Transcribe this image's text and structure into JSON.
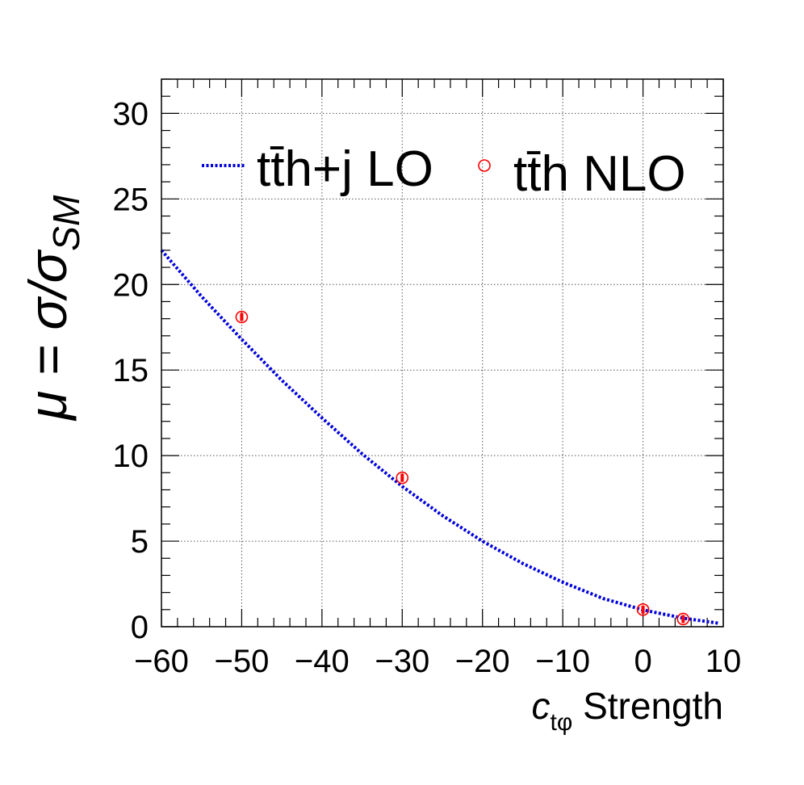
{
  "chart_data": {
    "type": "line",
    "xlabel": {
      "main": "c",
      "sub": "tφ",
      "suffix": " Strength"
    },
    "ylabel": {
      "lead": "μ = σ/σ",
      "sub": "SM"
    },
    "xlim": [
      -60,
      10
    ],
    "ylim": [
      0,
      32
    ],
    "x_ticks": [
      -60,
      -50,
      -40,
      -30,
      -20,
      -10,
      0,
      10
    ],
    "x_tick_labels": [
      "−60",
      "−50",
      "−40",
      "−30",
      "−20",
      "−10",
      "0",
      "10"
    ],
    "y_ticks": [
      0,
      5,
      10,
      15,
      20,
      25,
      30
    ],
    "y_tick_labels": [
      "0",
      "5",
      "10",
      "15",
      "20",
      "25",
      "30"
    ],
    "grid": true,
    "legend": {
      "placement": "top",
      "entries": [
        "tt̄h+j LO",
        "tt̄h NLO"
      ]
    },
    "series": [
      {
        "name": "tt̄h+j LO",
        "kind": "dotted-line",
        "color": "#0000dd",
        "x": [
          -60,
          -55,
          -50,
          -45,
          -40,
          -35,
          -30,
          -25,
          -20,
          -15,
          -10,
          -5,
          0,
          5,
          9.5
        ],
        "y": [
          22.0,
          19.3,
          16.8,
          14.4,
          12.2,
          10.1,
          8.2,
          6.5,
          5.0,
          3.7,
          2.6,
          1.65,
          0.98,
          0.5,
          0.2
        ]
      },
      {
        "name": "tt̄h NLO",
        "kind": "markers",
        "color": "#ff0000",
        "x": [
          -50,
          -30,
          0,
          5
        ],
        "y": [
          18.1,
          8.7,
          1.0,
          0.45
        ]
      }
    ]
  }
}
